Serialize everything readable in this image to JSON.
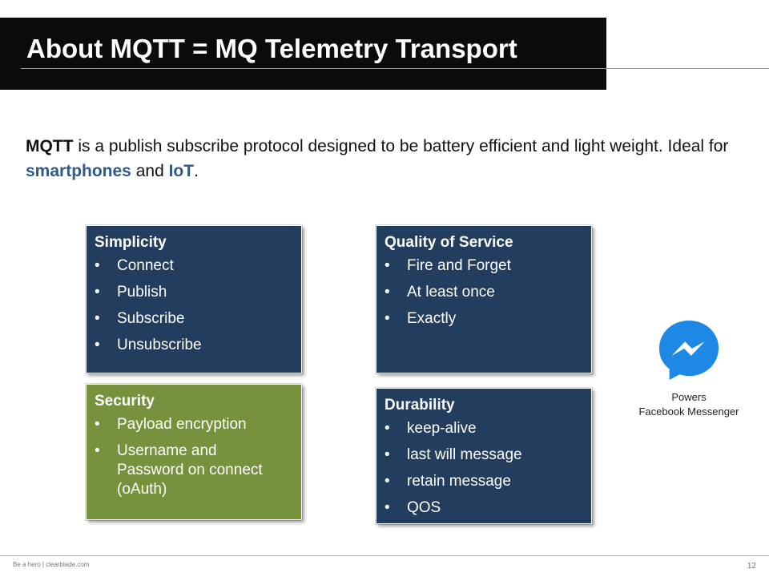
{
  "slide": {
    "title": "About MQTT = MQ Telemetry Transport",
    "intro": {
      "term": "MQTT",
      "text_1": " is a publish subscribe protocol designed to be battery efficient and light weight.  Ideal for ",
      "highlight_1": "smartphones",
      "text_2": " and ",
      "highlight_2": "IoT",
      "text_3": "."
    },
    "boxes": {
      "simplicity": {
        "title": "Simplicity",
        "items": [
          "Connect",
          "Publish",
          "Subscribe",
          "Unsubscribe"
        ]
      },
      "quality": {
        "title": "Quality of Service",
        "items": [
          "Fire and Forget",
          "At least once",
          "Exactly"
        ]
      },
      "security": {
        "title": "Security",
        "items": [
          "Payload encryption",
          "Username and Password on connect (oAuth)"
        ]
      },
      "durability": {
        "title": "Durability",
        "items": [
          "keep-alive",
          "last will message",
          "retain message",
          "QOS"
        ]
      }
    },
    "messenger": {
      "icon": "facebook-messenger-icon",
      "caption_line1": "Powers",
      "caption_line2": "Facebook Messenger"
    },
    "footer": {
      "left": "Be a hero | clearblade.com",
      "page_number": "12"
    }
  },
  "colors": {
    "navy_box": "#233d5e",
    "green_box": "#76923c",
    "highlight": "#2f5a8a",
    "messenger_blue": "#1e88e5"
  }
}
